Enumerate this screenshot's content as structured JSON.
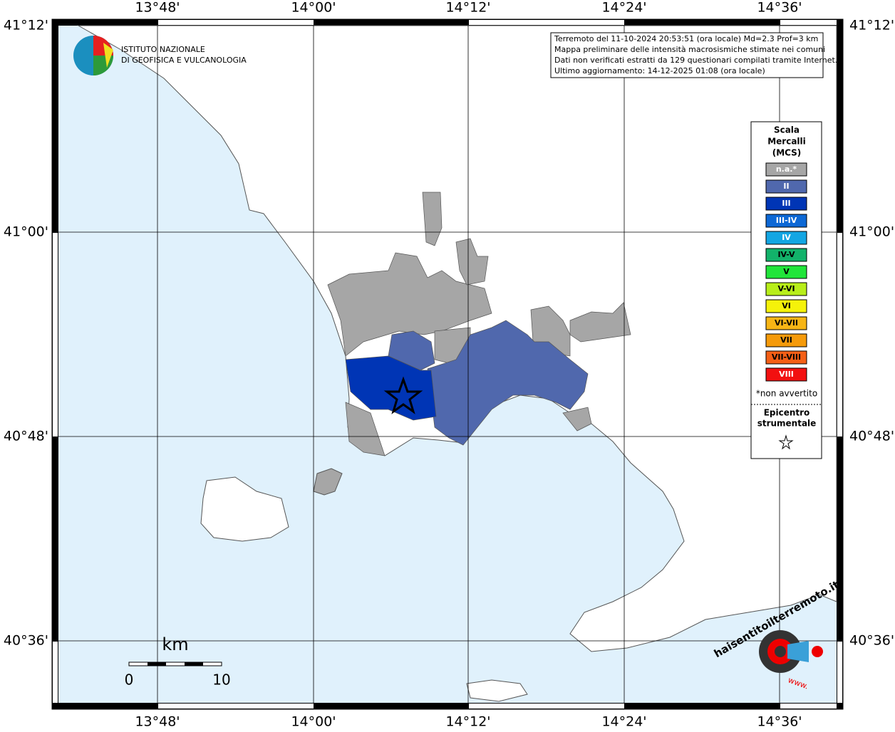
{
  "graticule": {
    "lon_labels": [
      "13°48'",
      "14°00'",
      "14°12'",
      "14°24'",
      "14°36'"
    ],
    "lat_labels": [
      "41°12'",
      "41°00'",
      "40°48'",
      "40°36'"
    ]
  },
  "logo": {
    "line1": "ISTITUTO NAZIONALE",
    "line2": "DI GEOFISICA E VULCANOLOGIA"
  },
  "info": [
    "Terremoto del 11-10-2024 20:53:51 (ora locale) Md=2.3 Prof=3 km",
    "Mappa preliminare delle intensità macrosismiche stimate nei comuni",
    "Dati non verificati estratti da 129 questionari compilati tramite Internet.",
    "Ultimo aggiornamento: 14-12-2025 01:08 (ora locale)"
  ],
  "legend": {
    "title": [
      "Scala",
      "Mercalli",
      "(MCS)"
    ],
    "items": [
      {
        "label": "n.a.*",
        "color": "#a6a6a6",
        "text_color": "#ffffff"
      },
      {
        "label": "II",
        "color": "#5068ad",
        "text_color": "#ffffff"
      },
      {
        "label": "III",
        "color": "#0035b5",
        "text_color": "#ffffff"
      },
      {
        "label": "III-IV",
        "color": "#0d68d5",
        "text_color": "#ffffff"
      },
      {
        "label": "IV",
        "color": "#13a6e3",
        "text_color": "#ffffff"
      },
      {
        "label": "IV-V",
        "color": "#12b26a",
        "text_color": "#000000"
      },
      {
        "label": "V",
        "color": "#21e53a",
        "text_color": "#000000"
      },
      {
        "label": "V-VI",
        "color": "#b8ee1a",
        "text_color": "#000000"
      },
      {
        "label": "VI",
        "color": "#f5f20a",
        "text_color": "#000000"
      },
      {
        "label": "VI-VII",
        "color": "#f7b515",
        "text_color": "#000000"
      },
      {
        "label": "VII",
        "color": "#f59a0a",
        "text_color": "#000000"
      },
      {
        "label": "VII-VIII",
        "color": "#f45f16",
        "text_color": "#000000"
      },
      {
        "label": "VIII",
        "color": "#f21010",
        "text_color": "#ffffff"
      }
    ],
    "note": "*non avvertito",
    "epicenter": [
      "Epicentro",
      "strumentale"
    ]
  },
  "scalebar": {
    "unit": "km",
    "start": "0",
    "end": "10"
  },
  "footer_logo": {
    "text": "haisentitoilterremoto.it",
    "prefix": "www."
  }
}
